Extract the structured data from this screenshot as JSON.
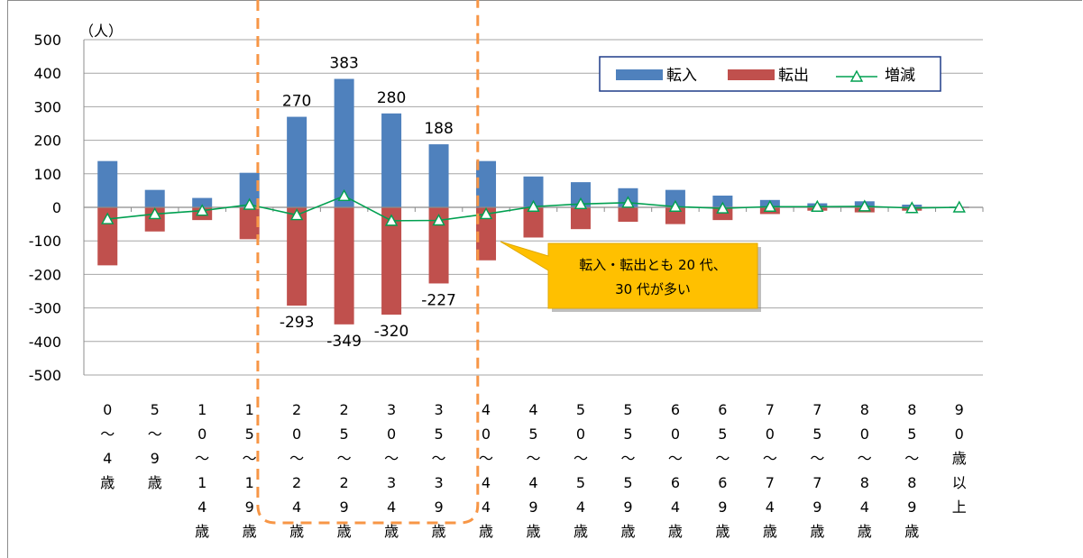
{
  "chart_data": {
    "type": "bar",
    "unit_label": "（人）",
    "ylim": [
      -500,
      500
    ],
    "yticks": [
      "500",
      "400",
      "300",
      "200",
      "100",
      "0",
      "-100",
      "-200",
      "-300",
      "-400",
      "-500"
    ],
    "grid": true,
    "legend_position": "top-right",
    "categories": [
      "0~4歳",
      "5~9歳",
      "10~14歳",
      "15~19歳",
      "20~24歳",
      "25~29歳",
      "30~34歳",
      "35~39歳",
      "40~44歳",
      "45~49歳",
      "50~54歳",
      "55~59歳",
      "60~64歳",
      "65~69歳",
      "70~74歳",
      "75~79歳",
      "80~84歳",
      "85~89歳",
      "90歳以上"
    ],
    "category_lines": [
      [
        "0",
        "〜",
        "4",
        "歳"
      ],
      [
        "5",
        "〜",
        "9",
        "歳"
      ],
      [
        "1",
        "0",
        "〜",
        "1",
        "4",
        "歳"
      ],
      [
        "1",
        "5",
        "〜",
        "1",
        "9",
        "歳"
      ],
      [
        "2",
        "0",
        "〜",
        "2",
        "4",
        "歳"
      ],
      [
        "2",
        "5",
        "〜",
        "2",
        "9",
        "歳"
      ],
      [
        "3",
        "0",
        "〜",
        "3",
        "4",
        "歳"
      ],
      [
        "3",
        "5",
        "〜",
        "3",
        "9",
        "歳"
      ],
      [
        "4",
        "0",
        "〜",
        "4",
        "4",
        "歳"
      ],
      [
        "4",
        "5",
        "〜",
        "4",
        "9",
        "歳"
      ],
      [
        "5",
        "0",
        "〜",
        "5",
        "4",
        "歳"
      ],
      [
        "5",
        "5",
        "〜",
        "5",
        "9",
        "歳"
      ],
      [
        "6",
        "0",
        "〜",
        "6",
        "4",
        "歳"
      ],
      [
        "6",
        "5",
        "〜",
        "6",
        "9",
        "歳"
      ],
      [
        "7",
        "0",
        "〜",
        "7",
        "4",
        "歳"
      ],
      [
        "7",
        "5",
        "〜",
        "7",
        "9",
        "歳"
      ],
      [
        "8",
        "0",
        "〜",
        "8",
        "4",
        "歳"
      ],
      [
        "8",
        "5",
        "〜",
        "8",
        "9",
        "歳"
      ],
      [
        "9",
        "0",
        "歳",
        "以",
        "上"
      ]
    ],
    "series": [
      {
        "name": "転入",
        "kind": "bar",
        "color": "#4f81bd",
        "values": [
          138,
          52,
          28,
          103,
          270,
          383,
          280,
          188,
          138,
          92,
          75,
          57,
          52,
          35,
          22,
          12,
          18,
          8,
          2
        ]
      },
      {
        "name": "転出",
        "kind": "bar",
        "color": "#c0504d",
        "values": [
          -173,
          -72,
          -38,
          -95,
          -293,
          -349,
          -320,
          -227,
          -158,
          -90,
          -65,
          -43,
          -50,
          -38,
          -20,
          -10,
          -15,
          -10,
          -2
        ]
      },
      {
        "name": "増減",
        "kind": "line",
        "color": "#00a050",
        "values": [
          -35,
          -20,
          -10,
          8,
          -23,
          34,
          -40,
          -39,
          -20,
          2,
          10,
          14,
          2,
          -3,
          2,
          2,
          3,
          -2,
          0
        ]
      }
    ],
    "data_labels": [
      {
        "series": 0,
        "index": 4,
        "text": "270"
      },
      {
        "series": 0,
        "index": 5,
        "text": "383"
      },
      {
        "series": 0,
        "index": 6,
        "text": "280"
      },
      {
        "series": 0,
        "index": 7,
        "text": "188"
      },
      {
        "series": 1,
        "index": 4,
        "text": "-293"
      },
      {
        "series": 1,
        "index": 5,
        "text": "-349"
      },
      {
        "series": 1,
        "index": 6,
        "text": "-320"
      },
      {
        "series": 1,
        "index": 7,
        "text": "-227"
      }
    ],
    "highlight_range": [
      4,
      7
    ],
    "annotation": {
      "line1": "転入・転出とも 20 代、",
      "line2": "30 代が多い",
      "fill": "#ffc000"
    }
  }
}
